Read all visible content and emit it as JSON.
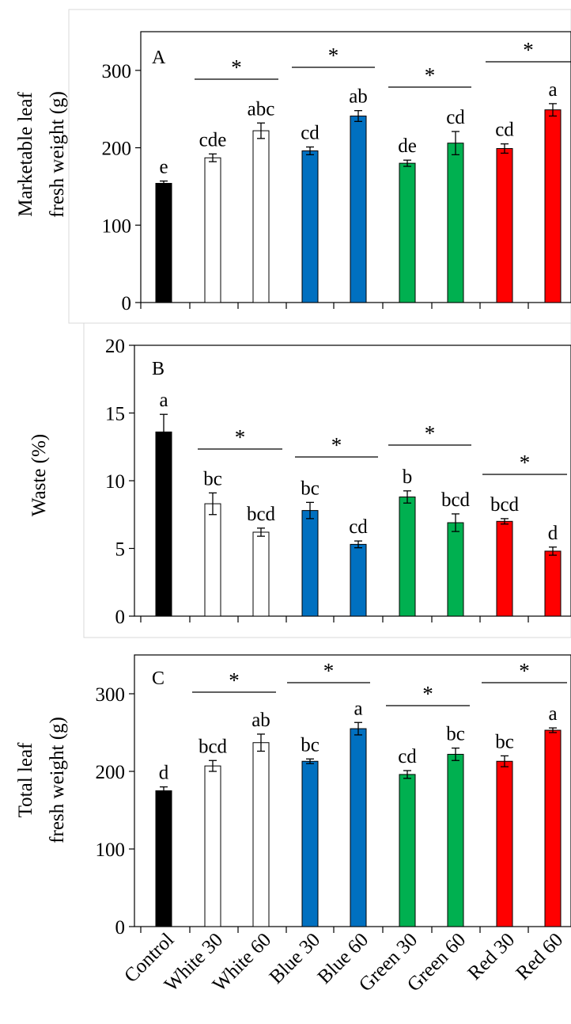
{
  "chart_data": [
    {
      "type": "bar",
      "panel": "A",
      "ylabel_lines": [
        "Marketable leaf",
        "fresh weight (g)"
      ],
      "ylim": [
        0,
        350
      ],
      "yticks": [
        0,
        100,
        200,
        300
      ],
      "categories": [
        "Control",
        "White 30",
        "White 60",
        "Blue 30",
        "Blue 60",
        "Green 30",
        "Green 60",
        "Red 30",
        "Red 60"
      ],
      "values": [
        154,
        187,
        222,
        196,
        241,
        180,
        206,
        199,
        249
      ],
      "errors": [
        3,
        5,
        10,
        5,
        7,
        4,
        15,
        6,
        8
      ],
      "letters": [
        "e",
        "cde",
        "abc",
        "cd",
        "ab",
        "de",
        "cd",
        "cd",
        "a"
      ],
      "significance": [
        "*",
        "*",
        "*",
        "*"
      ]
    },
    {
      "type": "bar",
      "panel": "B",
      "ylabel_lines": [
        "Waste (%)"
      ],
      "ylim": [
        0,
        20
      ],
      "yticks": [
        0,
        5,
        10,
        15,
        20
      ],
      "categories": [
        "Control",
        "White 30",
        "White 60",
        "Blue 30",
        "Blue 60",
        "Green 30",
        "Green 60",
        "Red 30",
        "Red 60"
      ],
      "values": [
        13.6,
        8.3,
        6.2,
        7.8,
        5.3,
        8.8,
        6.9,
        7.0,
        4.8
      ],
      "errors": [
        1.3,
        0.8,
        0.3,
        0.6,
        0.25,
        0.45,
        0.65,
        0.2,
        0.3
      ],
      "letters": [
        "a",
        "bc",
        "bcd",
        "bc",
        "cd",
        "b",
        "bcd",
        "bcd",
        "d"
      ],
      "significance": [
        "*",
        "*",
        "*",
        "*"
      ]
    },
    {
      "type": "bar",
      "panel": "C",
      "ylabel_lines": [
        "Total leaf",
        "fresh weight (g)"
      ],
      "ylim": [
        0,
        350
      ],
      "yticks": [
        0,
        100,
        200,
        300
      ],
      "categories": [
        "Control",
        "White 30",
        "White 60",
        "Blue 30",
        "Blue 60",
        "Green 30",
        "Green 60",
        "Red 30",
        "Red 60"
      ],
      "values": [
        175,
        207,
        237,
        213,
        255,
        196,
        222,
        213,
        253
      ],
      "errors": [
        5,
        7,
        11,
        3,
        8,
        5,
        8,
        7,
        3
      ],
      "letters": [
        "d",
        "bcd",
        "ab",
        "bc",
        "a",
        "cd",
        "bc",
        "bc",
        "a"
      ],
      "significance": [
        "*",
        "*",
        "*",
        "*"
      ]
    }
  ],
  "colors": {
    "control": "#000000",
    "white": "#ffffff",
    "blue": "#0070c0",
    "green": "#00b050",
    "red": "#ff0000"
  },
  "xtick_labels": [
    "Control",
    "White 30",
    "White 60",
    "Blue 30",
    "Blue 60",
    "Green 30",
    "Green 60",
    "Red 30",
    "Red 60"
  ]
}
